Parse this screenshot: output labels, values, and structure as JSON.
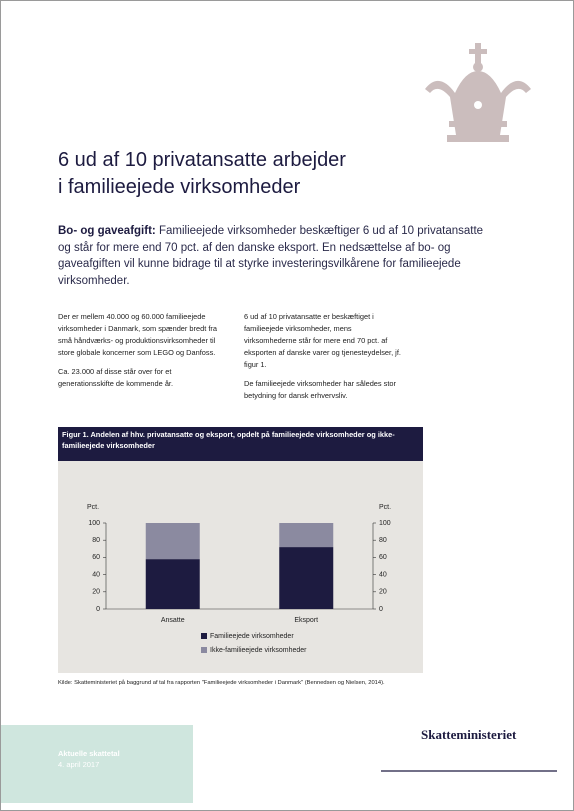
{
  "header": {
    "title_lines": [
      "6 ud af 10 privatansatte arbejder",
      "i familieejede virksomheder"
    ]
  },
  "lead": {
    "label": "Bo- og gaveafgift:",
    "text": "Familieejede virksomheder beskæftiger 6 ud af 10 privatansatte og står for mere end 70 pct. af den danske eksport. En nedsættelse af bo- og gaveafgiften vil kunne bidrage til at styrke investeringsvilkårene for familieejede virksomheder."
  },
  "columns": [
    [
      "Der er mellem 40.000 og 60.000 familieejede virksomheder i Danmark, som spænder bredt fra små håndværks- og produktionsvirksomheder til store globale koncerner som LEGO og Danfoss.",
      "Ca. 23.000 af disse står over for et generationsskifte de kommende år."
    ],
    [
      "6 ud af 10 privatansatte er beskæftiget i familieejede virksomheder, mens virksomhederne står for mere end 70 pct. af eksporten af danske varer og tjenesteydelser, jf. figur 1.",
      "De familieejede virksomheder har således stor betydning for dansk erhvervsliv."
    ]
  ],
  "chart_data": {
    "type": "bar",
    "stacked": true,
    "title": "Figur 1. Andelen af hhv. privatansatte og eksport, opdelt på familieejede virksomheder og ikke-familieejede virksomheder",
    "y_label": "Pct.",
    "y2_label": "Pct.",
    "categories": [
      "Ansatte",
      "Eksport"
    ],
    "series": [
      {
        "name": "Familieejede virksomheder",
        "color": "#1d1b40",
        "values": [
          58,
          72
        ]
      },
      {
        "name": "Ikke-familieejede virksomheder",
        "color": "#8b8aa0",
        "values": [
          42,
          28
        ]
      }
    ],
    "ylim": [
      0,
      100
    ],
    "yticks": [
      0,
      20,
      40,
      60,
      80,
      100
    ],
    "y2lim": [
      0,
      100
    ],
    "y2ticks": [
      0,
      20,
      40,
      60,
      80,
      100
    ],
    "source": "Kilde: Skatteministeriet på baggrund af tal fra rapporten \"Familieejede virksomheder i Danmark\" (Bennedsen og Nielsen, 2014)."
  },
  "footer": {
    "box_title": "Aktuelle skattetal",
    "date": "4. april 2017",
    "logo": "Skatteministeriet"
  }
}
